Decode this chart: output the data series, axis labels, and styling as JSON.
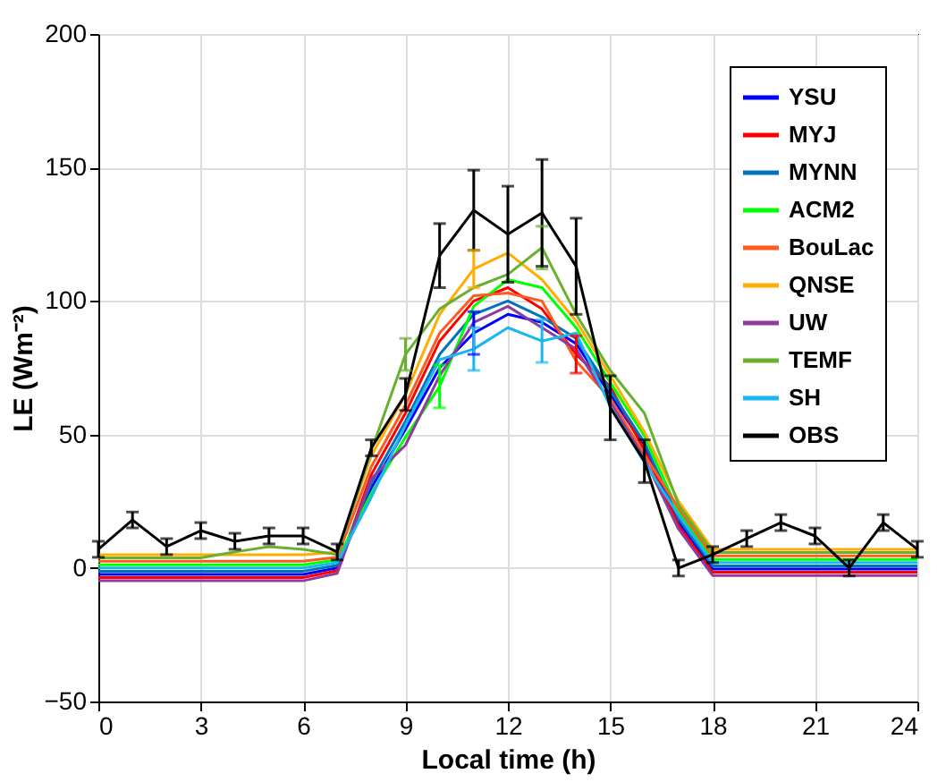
{
  "chart_data": {
    "type": "line",
    "xlabel": "Local time (h)",
    "ylabel": "LE (Wm⁻²)",
    "x": [
      0,
      1,
      2,
      3,
      4,
      5,
      6,
      7,
      8,
      9,
      10,
      11,
      12,
      13,
      14,
      15,
      16,
      17,
      18,
      19,
      20,
      21,
      22,
      23,
      24
    ],
    "xlim": [
      0,
      24
    ],
    "xticks": [
      0,
      3,
      6,
      9,
      12,
      15,
      18,
      21,
      24
    ],
    "ylim": [
      -50,
      200
    ],
    "yticks": [
      -50,
      0,
      50,
      100,
      150,
      200
    ],
    "grid": true,
    "legend": "top right",
    "series": [
      {
        "name": "YSU",
        "color": "#0000ff",
        "values": [
          -2.4,
          -2.4,
          -2.4,
          -2.4,
          -2.4,
          -2.4,
          -2.4,
          0,
          30,
          52,
          75,
          88,
          95,
          92,
          84,
          65,
          45.5,
          17.2,
          -0.4,
          -0.4,
          -0.4,
          -0.4,
          -0.4,
          -0.4,
          -0.4
        ],
        "errors": [
          null,
          null,
          null,
          null,
          null,
          null,
          null,
          null,
          null,
          null,
          null,
          8,
          null,
          null,
          null,
          null,
          null,
          null,
          null,
          null,
          null,
          null,
          null,
          null,
          null
        ]
      },
      {
        "name": "MYJ",
        "color": "#ff0000",
        "values": [
          -3.6,
          -3.6,
          -3.6,
          -3.6,
          -3.6,
          -3.6,
          -3.6,
          -1,
          35,
          58,
          85,
          100,
          105,
          97,
          80,
          68,
          44,
          15.9,
          -1.6,
          -1.6,
          -1.6,
          -1.6,
          -1.6,
          -1.6,
          -1.6
        ],
        "errors": [
          null,
          null,
          null,
          null,
          null,
          null,
          null,
          null,
          null,
          null,
          null,
          null,
          null,
          null,
          7,
          null,
          null,
          null,
          null,
          null,
          null,
          null,
          null,
          null,
          null
        ]
      },
      {
        "name": "MYNN",
        "color": "#0072bd",
        "values": [
          -1.2,
          -1.2,
          -1.2,
          -1.2,
          -1.2,
          -1.2,
          -1.2,
          1,
          32,
          55,
          80,
          95,
          100,
          94,
          86,
          66.5,
          47,
          18.5,
          0.8,
          0.8,
          0.8,
          0.8,
          0.8,
          0.8,
          0.8
        ]
      },
      {
        "name": "ACM2",
        "color": "#00ff00",
        "values": [
          1.2,
          1.2,
          1.2,
          1.2,
          1.2,
          1.2,
          1.2,
          3,
          28,
          49,
          68,
          98,
          108,
          105,
          90,
          69.5,
          49.5,
          21.1,
          3.2,
          3.2,
          3.2,
          3.2,
          3.2,
          3.2,
          3.2
        ],
        "errors": [
          null,
          null,
          null,
          null,
          null,
          null,
          null,
          null,
          null,
          null,
          8,
          null,
          null,
          null,
          null,
          null,
          null,
          null,
          null,
          null,
          null,
          null,
          null,
          null,
          null
        ]
      },
      {
        "name": "BouLac",
        "color": "#ff5a1f",
        "values": [
          2.5,
          2.5,
          2.5,
          2.5,
          2.5,
          2.5,
          2.5,
          4,
          38,
          61,
          88,
          102,
          103,
          100,
          77.5,
          63.5,
          42.5,
          22.4,
          4.5,
          4.5,
          4.5,
          4.5,
          4.5,
          4.5,
          4.5
        ]
      },
      {
        "name": "QNSE",
        "color": "#ffae00",
        "values": [
          5,
          5,
          5,
          5,
          5,
          5,
          5,
          6,
          42,
          65,
          95,
          112,
          118,
          108,
          92.5,
          72,
          51,
          25,
          7,
          7,
          7,
          7,
          7,
          7,
          7
        ],
        "errors": [
          null,
          null,
          null,
          null,
          null,
          null,
          null,
          null,
          null,
          null,
          null,
          7,
          null,
          null,
          null,
          null,
          null,
          null,
          null,
          null,
          null,
          null,
          null,
          null,
          null
        ]
      },
      {
        "name": "UW",
        "color": "#8e3ba0",
        "values": [
          -4.8,
          -4.8,
          -4.8,
          -4.8,
          -4.8,
          -4.8,
          -4.8,
          -2,
          33.5,
          46,
          72,
          92,
          98,
          90,
          82,
          62,
          41,
          14.6,
          -2.8,
          -2.8,
          -2.8,
          -2.8,
          -2.8,
          -2.8,
          -2.8
        ]
      },
      {
        "name": "TEMF",
        "color": "#6ab02f",
        "values": [
          3.8,
          3.8,
          3.8,
          3.8,
          6,
          8,
          7,
          5,
          44,
          80,
          97,
          105,
          110,
          120,
          95,
          74,
          58,
          23.7,
          5.8,
          5.8,
          5.8,
          5.8,
          5.8,
          5.8,
          5.8
        ],
        "errors": [
          null,
          null,
          null,
          null,
          null,
          null,
          null,
          null,
          null,
          6,
          null,
          null,
          null,
          8,
          null,
          null,
          null,
          null,
          null,
          null,
          null,
          null,
          null,
          null,
          null
        ]
      },
      {
        "name": "SH",
        "color": "#1ab6f0",
        "values": [
          0,
          0,
          0,
          0,
          0,
          0,
          0,
          2,
          26.5,
          53.5,
          78,
          82,
          90,
          85,
          88,
          60.5,
          39.5,
          19.8,
          2,
          2,
          2,
          2,
          2,
          2,
          2
        ],
        "errors": [
          null,
          null,
          null,
          null,
          null,
          null,
          null,
          null,
          null,
          null,
          null,
          8,
          null,
          8,
          null,
          null,
          null,
          null,
          null,
          null,
          null,
          null,
          null,
          null,
          null
        ]
      },
      {
        "name": "OBS",
        "color": "#000000",
        "values": [
          7,
          18,
          8,
          14,
          10,
          12,
          12,
          6,
          45,
          65,
          117,
          134,
          125,
          133,
          113,
          60,
          40,
          0,
          5,
          11,
          17,
          12,
          0,
          17,
          7
        ],
        "errors": [
          3,
          3,
          3,
          3,
          3,
          3,
          3,
          3,
          3,
          6,
          12,
          15,
          18,
          20,
          18,
          12,
          8,
          3,
          3,
          3,
          3,
          3,
          3,
          3,
          3
        ]
      }
    ]
  }
}
